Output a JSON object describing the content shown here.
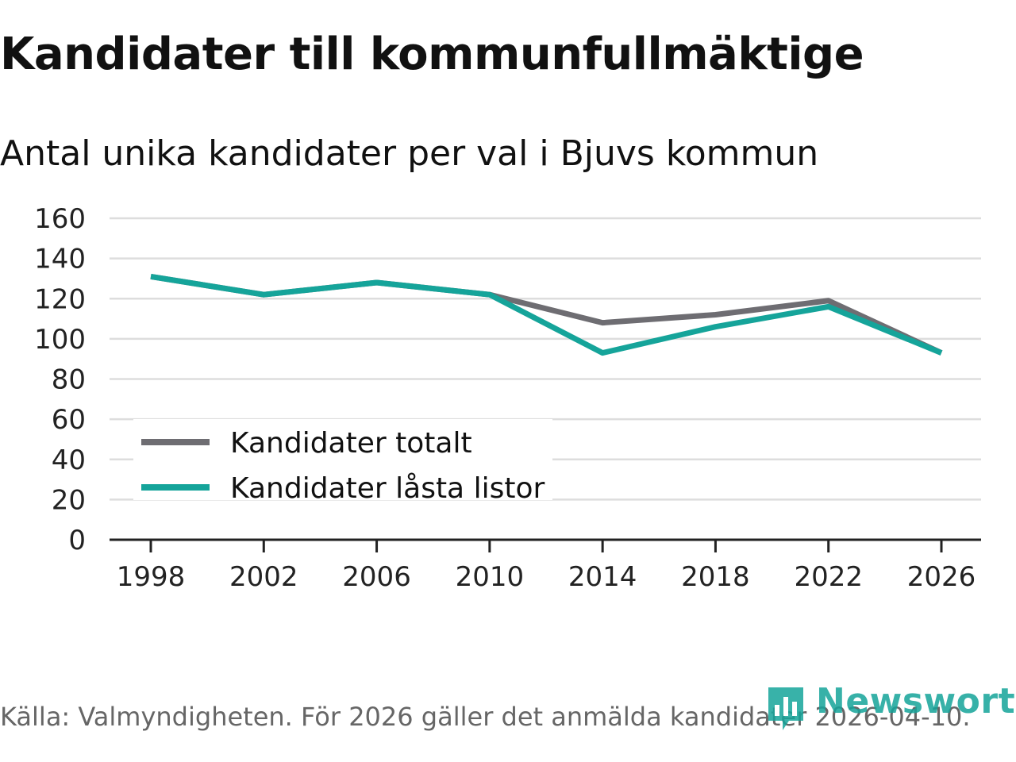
{
  "title": "Kandidater till kommunfullmäktige",
  "subtitle": "Antal unika kandidater per val i Bjuvs kommun",
  "source": "Källa: Valmyndigheten. För 2026 gäller det anmälda kandidater 2026-04-10.",
  "logo": {
    "text": "Newsworthy",
    "icon": "bar-chart-icon"
  },
  "colors": {
    "totalt": "#6e6d72",
    "lasta": "#15a49a",
    "grid": "#dddddd",
    "axis": "#222222"
  },
  "chart_data": {
    "type": "line",
    "title": "Kandidater till kommunfullmäktige",
    "subtitle": "Antal unika kandidater per val i Bjuvs kommun",
    "xlabel": "",
    "ylabel": "",
    "x": [
      1998,
      2002,
      2006,
      2010,
      2014,
      2018,
      2022,
      2026
    ],
    "x_tick_labels": [
      "1998",
      "2002",
      "2006",
      "2010",
      "2014",
      "2018",
      "2022",
      "2026"
    ],
    "y_ticks": [
      0,
      20,
      40,
      60,
      80,
      100,
      120,
      140,
      160
    ],
    "y_tick_labels": [
      "0",
      "20",
      "40",
      "60",
      "80",
      "100",
      "120",
      "140",
      "160"
    ],
    "ylim": [
      0,
      160
    ],
    "grid": true,
    "legend_position": "bottom-left",
    "series": [
      {
        "name": "Kandidater totalt",
        "color": "#6e6d72",
        "values": [
          131,
          122,
          128,
          122,
          108,
          112,
          119,
          93
        ]
      },
      {
        "name": "Kandidater låsta listor",
        "color": "#15a49a",
        "values": [
          131,
          122,
          128,
          122,
          93,
          106,
          116,
          93
        ]
      }
    ]
  }
}
